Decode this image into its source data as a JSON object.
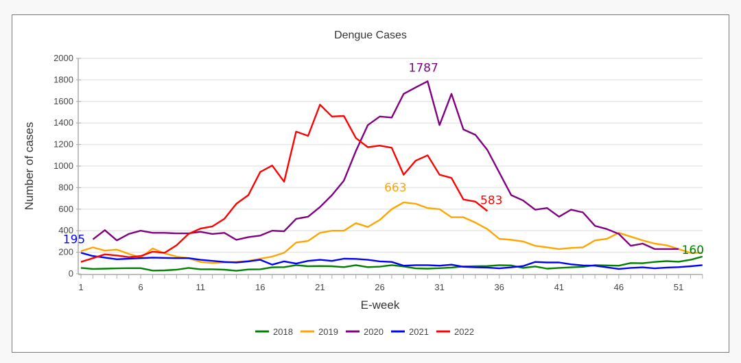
{
  "chart_data": {
    "type": "line",
    "title": "Dengue Cases",
    "xlabel": "E-week",
    "ylabel": "Number of cases",
    "xlim": [
      1,
      53
    ],
    "ylim": [
      0,
      2000
    ],
    "x_ticks": [
      1,
      6,
      11,
      16,
      21,
      26,
      31,
      36,
      41,
      46,
      51
    ],
    "y_ticks": [
      0,
      200,
      400,
      600,
      800,
      1000,
      1200,
      1400,
      1600,
      1800,
      2000
    ],
    "grid": true,
    "legend_position": "bottom",
    "series": [
      {
        "name": "2018",
        "color": "#008000",
        "values": [
          55,
          45,
          48,
          50,
          52,
          52,
          30,
          32,
          38,
          55,
          42,
          42,
          38,
          28,
          40,
          42,
          60,
          62,
          80,
          70,
          72,
          70,
          62,
          80,
          62,
          66,
          80,
          68,
          50,
          48,
          52,
          58,
          68,
          70,
          72,
          80,
          78,
          55,
          68,
          48,
          55,
          60,
          65,
          80,
          78,
          75,
          100,
          98,
          110,
          118,
          112,
          130,
          160
        ]
      },
      {
        "name": "2019",
        "color": "#FFA500",
        "values": [
          210,
          245,
          215,
          225,
          185,
          150,
          235,
          190,
          160,
          145,
          110,
          100,
          105,
          110,
          120,
          140,
          160,
          195,
          290,
          305,
          380,
          400,
          400,
          470,
          435,
          500,
          600,
          663,
          650,
          610,
          600,
          525,
          525,
          475,
          415,
          325,
          315,
          300,
          260,
          245,
          230,
          240,
          245,
          310,
          325,
          380,
          345,
          310,
          280,
          265,
          230,
          195,
          195
        ]
      },
      {
        "name": "2020",
        "color": "#800080",
        "values": [
          null,
          320,
          405,
          310,
          370,
          400,
          380,
          380,
          375,
          375,
          390,
          370,
          380,
          315,
          340,
          355,
          400,
          395,
          510,
          530,
          620,
          730,
          865,
          1140,
          1380,
          1460,
          1450,
          1670,
          1730,
          1787,
          1380,
          1670,
          1340,
          1290,
          1150,
          940,
          730,
          680,
          595,
          610,
          530,
          595,
          570,
          445,
          415,
          370,
          260,
          280,
          230,
          230,
          230,
          null,
          null
        ]
      },
      {
        "name": "2021",
        "color": "#0000FF",
        "values": [
          195,
          165,
          150,
          135,
          140,
          145,
          150,
          148,
          145,
          145,
          130,
          120,
          110,
          105,
          115,
          130,
          85,
          115,
          95,
          120,
          130,
          120,
          140,
          138,
          130,
          115,
          110,
          75,
          80,
          80,
          75,
          85,
          65,
          60,
          58,
          50,
          60,
          72,
          110,
          105,
          105,
          88,
          78,
          75,
          60,
          45,
          55,
          60,
          50,
          58,
          62,
          70,
          80
        ]
      },
      {
        "name": "2022",
        "color": "#FF0000",
        "values": [
          110,
          145,
          180,
          170,
          155,
          165,
          205,
          195,
          265,
          370,
          420,
          440,
          510,
          650,
          730,
          945,
          1005,
          855,
          1320,
          1280,
          1570,
          1460,
          1465,
          1260,
          1175,
          1190,
          1170,
          920,
          1050,
          1100,
          920,
          890,
          690,
          670,
          583,
          null,
          null,
          null,
          null,
          null,
          null,
          null,
          null,
          null,
          null,
          null,
          null,
          null,
          null,
          null,
          null,
          null,
          null
        ]
      }
    ],
    "annotations": [
      {
        "series": "2021",
        "week": 1,
        "text": "195"
      },
      {
        "series": "2020",
        "week": 30,
        "text": "1787"
      },
      {
        "series": "2019",
        "week": 28,
        "text": "663"
      },
      {
        "series": "2022",
        "week": 35,
        "text": "583"
      },
      {
        "series": "2018",
        "week": 53,
        "text": "160"
      }
    ]
  }
}
